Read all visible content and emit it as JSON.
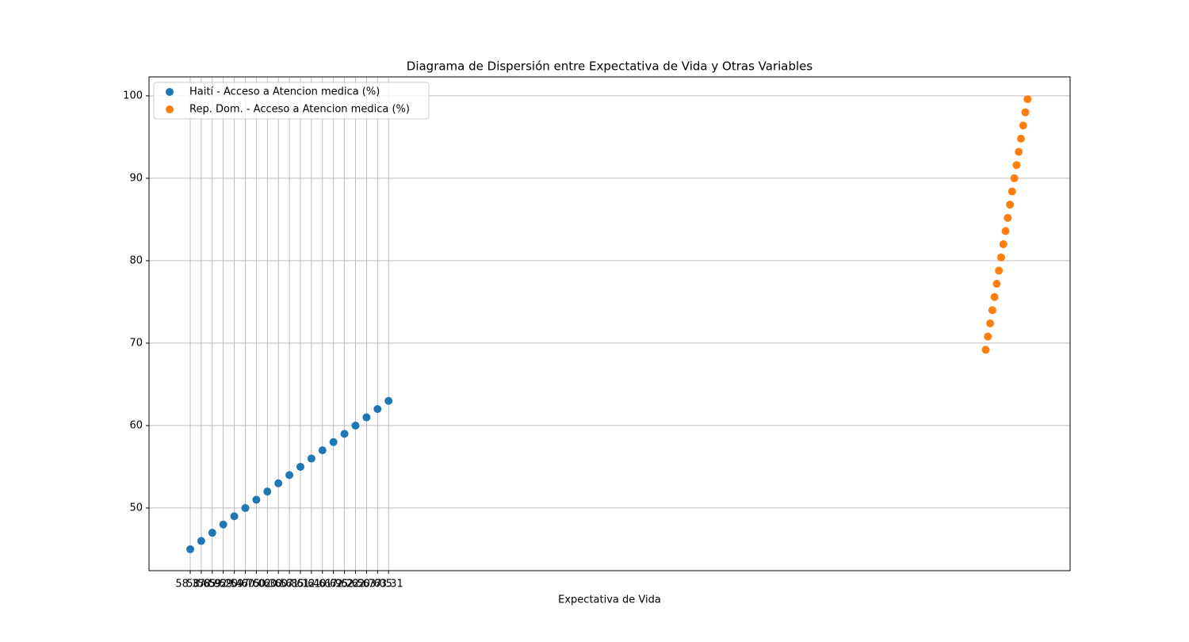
{
  "chart_data": {
    "type": "scatter",
    "title": "Diagrama de Dispersión entre Expectativa de Vida y Otras Variables",
    "x_label": "Expectativa de Vida",
    "series": [
      {
        "name": "Haití - Acceso a Atencion medica (%)",
        "color": "#1f77b4",
        "x": [
          0,
          1,
          2,
          3,
          4,
          5,
          6,
          7,
          8,
          9,
          10,
          11,
          12,
          13,
          14,
          15,
          16,
          17,
          18
        ],
        "values": [
          45,
          46,
          47,
          48,
          49,
          50,
          51,
          52,
          53,
          54,
          55,
          56,
          57,
          58,
          59,
          60,
          61,
          62,
          63
        ]
      },
      {
        "name": "Rep. Dom. - Acceso a Atencion medica (%)",
        "color": "#ff7f0e",
        "x": [
          72.2,
          72.4,
          72.6,
          72.8,
          73.0,
          73.2,
          73.4,
          73.6,
          73.8,
          74.0,
          74.2,
          74.4,
          74.6,
          74.8,
          75.0,
          75.2,
          75.4,
          75.6,
          75.8,
          76.0
        ],
        "values": [
          69.2,
          70.8,
          72.4,
          74.0,
          75.6,
          77.2,
          78.8,
          80.4,
          82.0,
          83.6,
          85.2,
          86.8,
          88.4,
          90.0,
          91.6,
          93.2,
          94.8,
          96.4,
          98.0,
          99.6
        ]
      }
    ],
    "xlim": [
      -3.74,
      79.86
    ],
    "ylim": [
      42.4,
      102.3
    ],
    "xticks": [
      {
        "value": 0,
        "label": "58.37"
      },
      {
        "value": 1,
        "label": "58.65"
      },
      {
        "value": 2,
        "label": "58.92"
      },
      {
        "value": 3,
        "label": "59.20"
      },
      {
        "value": 4,
        "label": "59.47"
      },
      {
        "value": 5,
        "label": "59.75"
      },
      {
        "value": 6,
        "label": "60.02"
      },
      {
        "value": 7,
        "label": "60.30"
      },
      {
        "value": 8,
        "label": "60.57"
      },
      {
        "value": 9,
        "label": "60.85"
      },
      {
        "value": 10,
        "label": "61.12"
      },
      {
        "value": 11,
        "label": "61.40"
      },
      {
        "value": 12,
        "label": "61.67"
      },
      {
        "value": 13,
        "label": "61.95"
      },
      {
        "value": 14,
        "label": "62.22"
      },
      {
        "value": 15,
        "label": "62.50"
      },
      {
        "value": 16,
        "label": "62.77"
      },
      {
        "value": 17,
        "label": "63.05"
      },
      {
        "value": 18,
        "label": "63.31"
      }
    ],
    "yticks": [
      50,
      60,
      70,
      80,
      90,
      100
    ],
    "grid": true,
    "legend": "upper-left"
  }
}
